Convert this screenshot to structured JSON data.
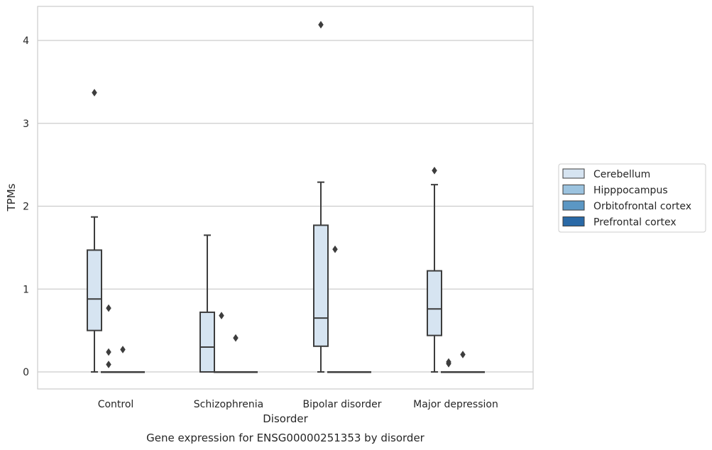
{
  "chart_data": {
    "type": "box",
    "caption": "Gene expression for ENSG00000251353 by disorder",
    "xlabel": "Disorder",
    "ylabel": "TPMs",
    "ylim": [
      -0.2,
      4.4
    ],
    "yticks": [
      0,
      1,
      2,
      3,
      4
    ],
    "grid": true,
    "legend_placement": "right",
    "categories": [
      "Control",
      "Schizophrenia",
      "Bipolar disorder",
      "Major depression"
    ],
    "series": [
      {
        "name": "Cerebellum",
        "color": "#d6e4f1",
        "boxes": [
          {
            "whislo": 0,
            "q1": 0.5,
            "med": 0.88,
            "q3": 1.47,
            "whishi": 1.87,
            "fliers": [
              3.37
            ]
          },
          {
            "whislo": 0,
            "q1": 0,
            "med": 0.3,
            "q3": 0.72,
            "whishi": 1.65,
            "fliers": []
          },
          {
            "whislo": 0,
            "q1": 0.31,
            "med": 0.65,
            "q3": 1.77,
            "whishi": 2.29,
            "fliers": [
              4.19
            ]
          },
          {
            "whislo": 0,
            "q1": 0.44,
            "med": 0.76,
            "q3": 1.22,
            "whishi": 2.26,
            "fliers": [
              2.43
            ]
          }
        ]
      },
      {
        "name": "Hipppocampus",
        "color": "#9cc3df",
        "boxes": [
          {
            "whislo": 0,
            "q1": 0,
            "med": 0,
            "q3": 0,
            "whishi": 0,
            "fliers": [
              0.77,
              0.24,
              0.09
            ]
          },
          {
            "whislo": 0,
            "q1": 0,
            "med": 0,
            "q3": 0,
            "whishi": 0,
            "fliers": [
              0.68
            ]
          },
          {
            "whislo": 0,
            "q1": 0,
            "med": 0,
            "q3": 0,
            "whishi": 0,
            "fliers": [
              1.48
            ]
          },
          {
            "whislo": 0,
            "q1": 0,
            "med": 0,
            "q3": 0,
            "whishi": 0,
            "fliers": [
              0.1,
              0.12
            ]
          }
        ]
      },
      {
        "name": "Orbitofrontal cortex",
        "color": "#5b97c4",
        "boxes": [
          {
            "whislo": 0,
            "q1": 0,
            "med": 0,
            "q3": 0,
            "whishi": 0,
            "fliers": [
              0.27
            ]
          },
          {
            "whislo": 0,
            "q1": 0,
            "med": 0,
            "q3": 0,
            "whishi": 0,
            "fliers": [
              0.41
            ]
          },
          {
            "whislo": 0,
            "q1": 0,
            "med": 0,
            "q3": 0,
            "whishi": 0,
            "fliers": []
          },
          {
            "whislo": 0,
            "q1": 0,
            "med": 0,
            "q3": 0,
            "whishi": 0,
            "fliers": [
              0.21
            ]
          }
        ]
      },
      {
        "name": "Prefrontal cortex",
        "color": "#2a69a6",
        "boxes": [
          {
            "whislo": 0,
            "q1": 0,
            "med": 0,
            "q3": 0,
            "whishi": 0,
            "fliers": []
          },
          {
            "whislo": 0,
            "q1": 0,
            "med": 0,
            "q3": 0,
            "whishi": 0,
            "fliers": []
          },
          {
            "whislo": 0,
            "q1": 0,
            "med": 0,
            "q3": 0,
            "whishi": 0,
            "fliers": []
          },
          {
            "whislo": 0,
            "q1": 0,
            "med": 0,
            "q3": 0,
            "whishi": 0,
            "fliers": []
          }
        ]
      }
    ]
  }
}
